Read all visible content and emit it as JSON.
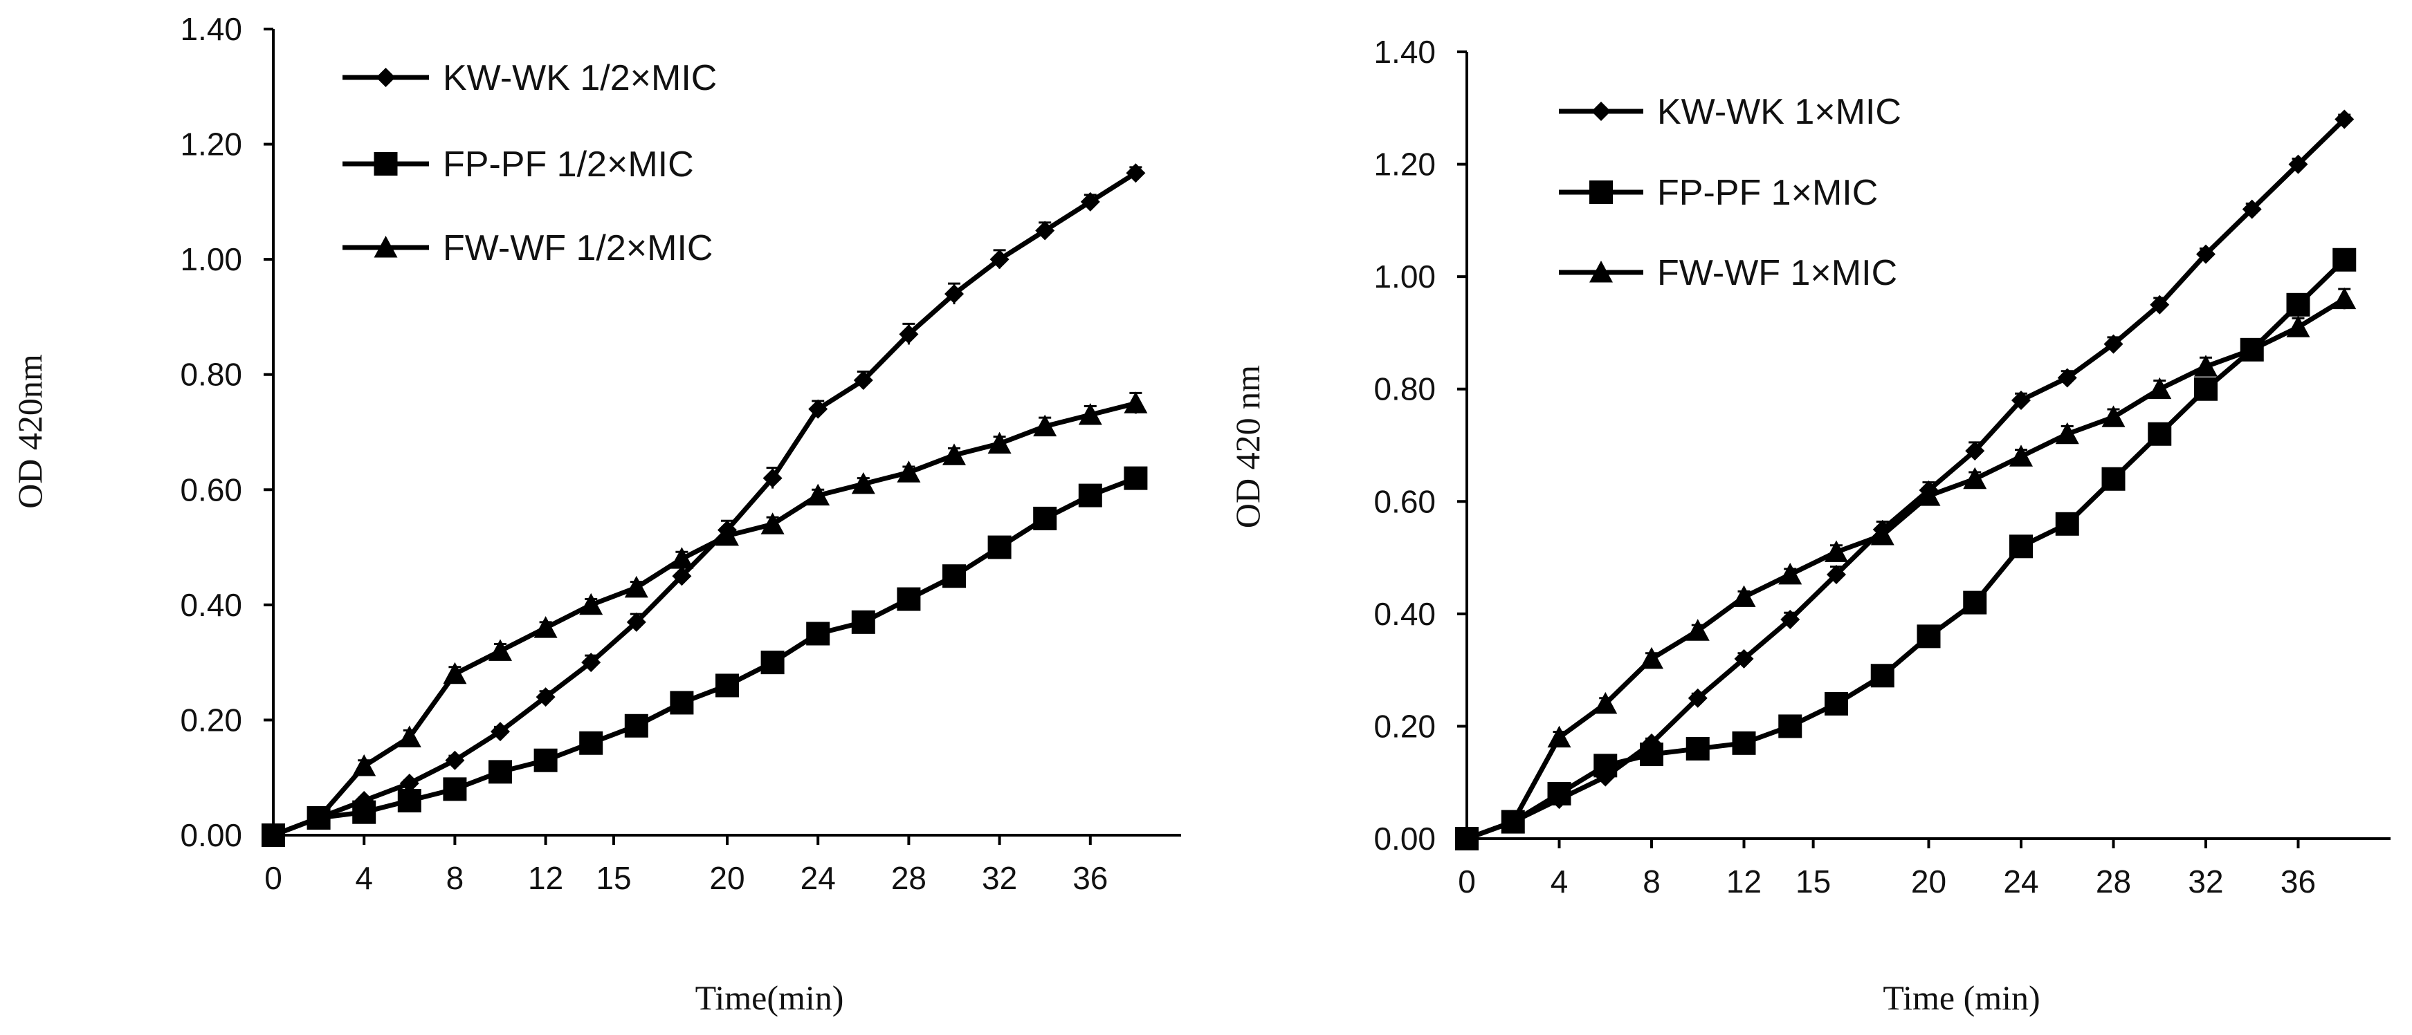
{
  "chart_data": [
    {
      "type": "line",
      "xlabel": "Time(min)",
      "ylabel": "OD 420nm",
      "x_tick_labels": [
        "0",
        "4",
        "8",
        "12",
        "15",
        "20",
        "24",
        "28",
        "32",
        "36"
      ],
      "x": [
        "0",
        "2",
        "4",
        "6",
        "8",
        "10",
        "12",
        "14",
        "16",
        "18",
        "20",
        "22",
        "24",
        "26",
        "28",
        "30",
        "32",
        "34",
        "36",
        "38"
      ],
      "ylim": [
        0,
        1.4
      ],
      "y_ticks": [
        "0.00",
        "0.20",
        "0.40",
        "0.60",
        "0.80",
        "1.00",
        "1.20",
        "1.40"
      ],
      "grid": false,
      "legend_position": "top-left",
      "series": [
        {
          "name": "KW-WK 1/2×MIC",
          "marker": "diamond",
          "values": [
            0.0,
            0.03,
            0.06,
            0.09,
            0.13,
            0.18,
            0.24,
            0.3,
            0.37,
            0.45,
            0.53,
            0.62,
            0.74,
            0.79,
            0.87,
            0.94,
            1.0,
            1.05,
            1.1,
            1.15
          ],
          "errors": [
            0.005,
            0.005,
            0.005,
            0.005,
            0.008,
            0.008,
            0.01,
            0.012,
            0.014,
            0.015,
            0.016,
            0.018,
            0.014,
            0.015,
            0.018,
            0.018,
            0.016,
            0.014,
            0.012,
            0.01
          ]
        },
        {
          "name": "FP-PF 1/2×MIC",
          "marker": "square",
          "values": [
            0.0,
            0.03,
            0.04,
            0.06,
            0.08,
            0.11,
            0.13,
            0.16,
            0.19,
            0.23,
            0.26,
            0.3,
            0.35,
            0.37,
            0.41,
            0.45,
            0.5,
            0.55,
            0.59,
            0.62
          ],
          "errors": [
            0.005,
            0.005,
            0.005,
            0.005,
            0.005,
            0.005,
            0.005,
            0.008,
            0.008,
            0.008,
            0.008,
            0.01,
            0.01,
            0.01,
            0.01,
            0.01,
            0.012,
            0.012,
            0.012,
            0.015
          ]
        },
        {
          "name": "FW-WF 1/2×MIC",
          "marker": "triangle",
          "values": [
            0.0,
            0.03,
            0.12,
            0.17,
            0.28,
            0.32,
            0.36,
            0.4,
            0.43,
            0.48,
            0.52,
            0.54,
            0.59,
            0.61,
            0.63,
            0.66,
            0.68,
            0.71,
            0.73,
            0.75
          ],
          "errors": [
            0.005,
            0.005,
            0.01,
            0.012,
            0.012,
            0.012,
            0.01,
            0.01,
            0.01,
            0.012,
            0.012,
            0.012,
            0.01,
            0.01,
            0.01,
            0.012,
            0.012,
            0.015,
            0.015,
            0.018
          ]
        }
      ]
    },
    {
      "type": "line",
      "xlabel": "Time (min)",
      "ylabel": "OD 420 nm",
      "x_tick_labels": [
        "0",
        "4",
        "8",
        "12",
        "15",
        "20",
        "24",
        "28",
        "32",
        "36"
      ],
      "x": [
        "0",
        "2",
        "4",
        "6",
        "8",
        "10",
        "12",
        "14",
        "16",
        "18",
        "20",
        "22",
        "24",
        "26",
        "28",
        "30",
        "32",
        "34",
        "36",
        "38"
      ],
      "ylim": [
        0,
        1.4
      ],
      "y_ticks": [
        "0.00",
        "0.20",
        "0.40",
        "0.60",
        "0.80",
        "1.00",
        "1.20",
        "1.40"
      ],
      "grid": false,
      "legend_position": "top-left",
      "series": [
        {
          "name": "KW-WK 1×MIC",
          "marker": "diamond",
          "values": [
            0.0,
            0.03,
            0.07,
            0.11,
            0.17,
            0.25,
            0.32,
            0.39,
            0.47,
            0.55,
            0.62,
            0.69,
            0.78,
            0.82,
            0.88,
            0.95,
            1.04,
            1.12,
            1.2,
            1.28
          ],
          "errors": [
            0.005,
            0.005,
            0.005,
            0.005,
            0.008,
            0.008,
            0.01,
            0.012,
            0.014,
            0.014,
            0.014,
            0.015,
            0.012,
            0.012,
            0.012,
            0.012,
            0.01,
            0.01,
            0.01,
            0.008
          ]
        },
        {
          "name": "FP-PF 1×MIC",
          "marker": "square",
          "values": [
            0.0,
            0.03,
            0.08,
            0.13,
            0.15,
            0.16,
            0.17,
            0.2,
            0.24,
            0.29,
            0.36,
            0.42,
            0.52,
            0.56,
            0.64,
            0.72,
            0.8,
            0.87,
            0.95,
            1.03
          ],
          "errors": [
            0.005,
            0.005,
            0.005,
            0.005,
            0.005,
            0.005,
            0.005,
            0.008,
            0.008,
            0.008,
            0.01,
            0.01,
            0.01,
            0.01,
            0.01,
            0.012,
            0.012,
            0.012,
            0.015,
            0.015
          ]
        },
        {
          "name": "FW-WF 1×MIC",
          "marker": "triangle",
          "values": [
            0.0,
            0.03,
            0.18,
            0.24,
            0.32,
            0.37,
            0.43,
            0.47,
            0.51,
            0.54,
            0.61,
            0.64,
            0.68,
            0.72,
            0.75,
            0.8,
            0.84,
            0.87,
            0.91,
            0.96
          ],
          "errors": [
            0.005,
            0.005,
            0.01,
            0.01,
            0.01,
            0.01,
            0.01,
            0.01,
            0.012,
            0.012,
            0.012,
            0.012,
            0.012,
            0.014,
            0.014,
            0.015,
            0.016,
            0.016,
            0.016,
            0.018
          ]
        }
      ]
    }
  ]
}
